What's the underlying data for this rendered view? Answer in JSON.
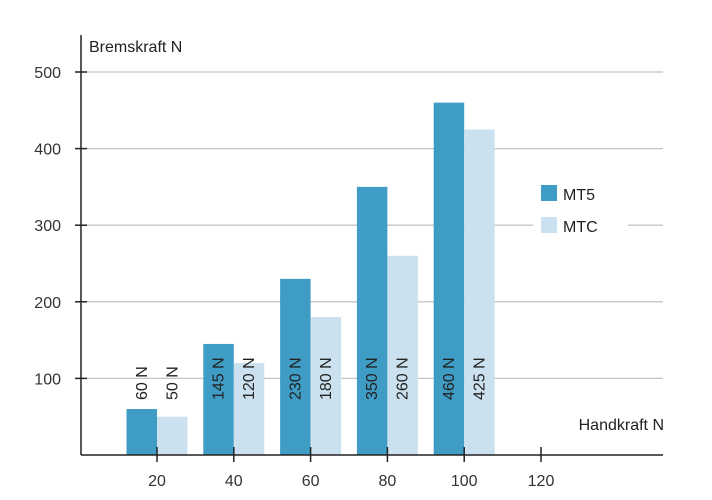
{
  "chart_data": {
    "type": "bar",
    "title": "",
    "xlabel": "Handkraft N",
    "ylabel": "Bremskraft N",
    "x_ticks": [
      "20",
      "40",
      "60",
      "80",
      "100",
      "120"
    ],
    "y_ticks": [
      "100",
      "200",
      "300",
      "400",
      "500"
    ],
    "ylim": [
      0,
      500
    ],
    "categories": [
      "20",
      "40",
      "60",
      "80",
      "100"
    ],
    "series": [
      {
        "name": "MT5",
        "color": "#3f9cc4",
        "values": [
          60,
          145,
          230,
          350,
          460
        ],
        "labels": [
          "60 N",
          "145 N",
          "230 N",
          "350 N",
          "460 N"
        ]
      },
      {
        "name": "MTC",
        "color": "#cce1ef",
        "values": [
          50,
          120,
          180,
          260,
          425
        ],
        "labels": [
          "50 N",
          "120 N",
          "180 N",
          "260 N",
          "425 N"
        ]
      }
    ],
    "grid": true,
    "legend": "right"
  }
}
